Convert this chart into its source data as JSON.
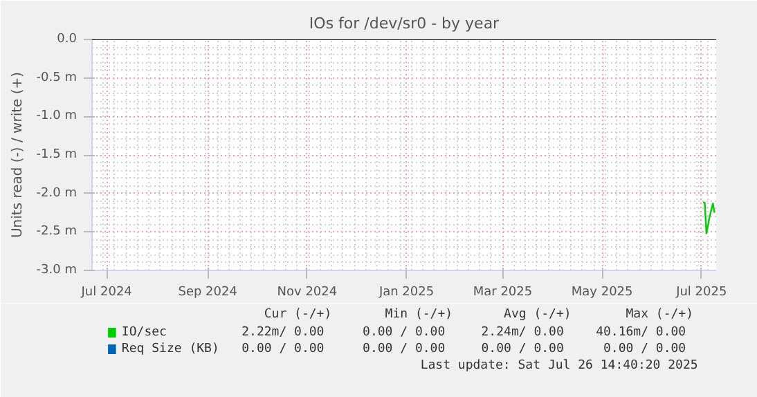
{
  "chart_data": {
    "type": "line",
    "title": "IOs for /dev/sr0 - by year",
    "ylabel": "Units read (-) / write (+)",
    "xlim": [
      "2024-06-22",
      "2025-07-10"
    ],
    "xticks": [
      {
        "value": "2024-07-01",
        "label": "Jul 2024"
      },
      {
        "value": "2024-09-01",
        "label": "Sep 2024"
      },
      {
        "value": "2024-11-01",
        "label": "Nov 2024"
      },
      {
        "value": "2025-01-01",
        "label": "Jan 2025"
      },
      {
        "value": "2025-03-01",
        "label": "Mar 2025"
      },
      {
        "value": "2025-05-01",
        "label": "May 2025"
      },
      {
        "value": "2025-07-01",
        "label": "Jul 2025"
      }
    ],
    "ylim": [
      -3.0,
      0.0
    ],
    "yticks": [
      {
        "value": 0,
        "label": "0.0"
      },
      {
        "value": -0.5,
        "label": "-0.5 m"
      },
      {
        "value": -1.0,
        "label": "-1.0 m"
      },
      {
        "value": -1.5,
        "label": "-1.5 m"
      },
      {
        "value": -2.0,
        "label": "-2.0 m"
      },
      {
        "value": -2.5,
        "label": "-2.5 m"
      },
      {
        "value": -3.0,
        "label": "-3.0 m"
      }
    ],
    "series": [
      {
        "name": "IO/sec",
        "color": "#00cc00",
        "x": [
          "2025-07-02",
          "2025-07-03",
          "2025-07-04",
          "2025-07-06",
          "2025-07-08",
          "2025-07-09"
        ],
        "values": [
          -2.12,
          -2.12,
          -2.52,
          -2.3,
          -2.13,
          -2.25
        ]
      },
      {
        "name": "Req Size (KB)",
        "color": "#0066b3"
      }
    ],
    "ref_lines": [
      {
        "axis": "y",
        "value": 0,
        "color": "#000000"
      }
    ],
    "grid": true,
    "legend": "bottom",
    "annotations": [
      "Cur (-/+)",
      "Min (-/+)",
      "Avg (-/+)",
      "Max (-/+)",
      "2.22m/  0.00",
      "0.00 /  0.00",
      "2.24m/  0.00",
      "40.16m/  0.00",
      "0.00 /  0.00",
      "0.00 /  0.00",
      "0.00 /  0.00",
      "0.00 /  0.00",
      "Last update: Sat Jul 26 14:40:20 2025"
    ]
  }
}
